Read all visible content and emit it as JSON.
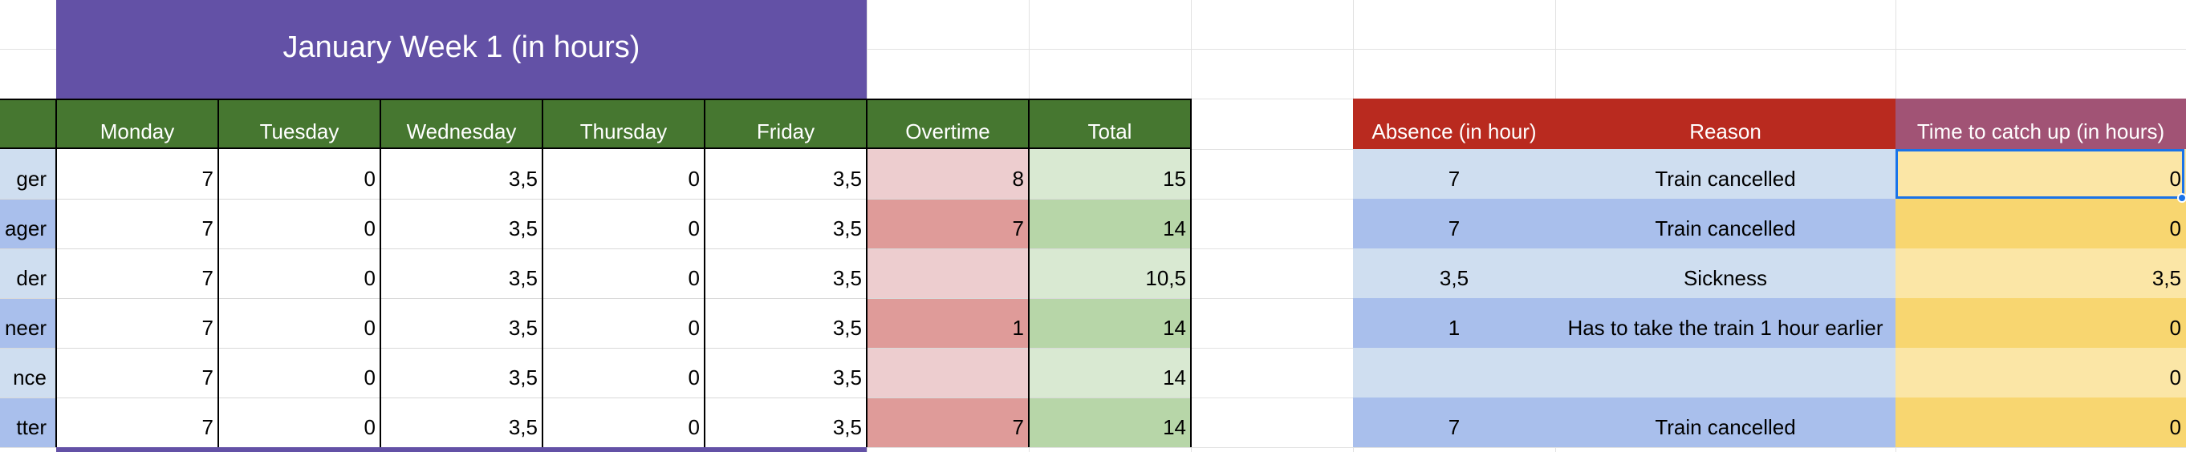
{
  "sheet": {
    "title": "January Week 1 (in hours)",
    "headers": {
      "monday": "Monday",
      "tuesday": "Tuesday",
      "wednesday": "Wednesday",
      "thursday": "Thursday",
      "friday": "Friday",
      "overtime": "Overtime",
      "total": "Total",
      "absence": "Absence (in hour)",
      "reason": "Reason",
      "catch_up": "Time to catch up (in hours)"
    },
    "rows": [
      {
        "role": "ger",
        "mon": "7",
        "tue": "0",
        "wed": "3,5",
        "thu": "0",
        "fri": "3,5",
        "overtime": "8",
        "total": "15",
        "absence": "7",
        "reason": "Train cancelled",
        "catch_up": "0"
      },
      {
        "role": "ager",
        "mon": "7",
        "tue": "0",
        "wed": "3,5",
        "thu": "0",
        "fri": "3,5",
        "overtime": "7",
        "total": "14",
        "absence": "7",
        "reason": "Train cancelled",
        "catch_up": "0"
      },
      {
        "role": "der",
        "mon": "7",
        "tue": "0",
        "wed": "3,5",
        "thu": "0",
        "fri": "3,5",
        "overtime": "",
        "total": "10,5",
        "absence": "3,5",
        "reason": "Sickness",
        "catch_up": "3,5"
      },
      {
        "role": "neer",
        "mon": "7",
        "tue": "0",
        "wed": "3,5",
        "thu": "0",
        "fri": "3,5",
        "overtime": "1",
        "total": "14",
        "absence": "1",
        "reason": "Has to take the train 1 hour earlier",
        "catch_up": "0"
      },
      {
        "role": "nce",
        "mon": "7",
        "tue": "0",
        "wed": "3,5",
        "thu": "0",
        "fri": "3,5",
        "overtime": "",
        "total": "14",
        "absence": "",
        "reason": "",
        "catch_up": "0"
      },
      {
        "role": "tter",
        "mon": "7",
        "tue": "0",
        "wed": "3,5",
        "thu": "0",
        "fri": "3,5",
        "overtime": "7",
        "total": "14",
        "absence": "7",
        "reason": "Train cancelled",
        "catch_up": "0"
      }
    ]
  },
  "colors": {
    "title_bg": "#6351a6",
    "header_green": "#467730",
    "header_red": "#b92a1f",
    "header_purple": "#a15375",
    "overtime_light": "#edcdcf",
    "overtime_dark": "#df9b99",
    "total_light": "#d9e9d2",
    "total_dark": "#b7d6a8",
    "blue_light": "#cfdef0",
    "blue_dark": "#a9bfec",
    "yellow_light": "#fbe6a6",
    "yellow_dark": "#f8d670",
    "selection": "#1a73e8"
  }
}
